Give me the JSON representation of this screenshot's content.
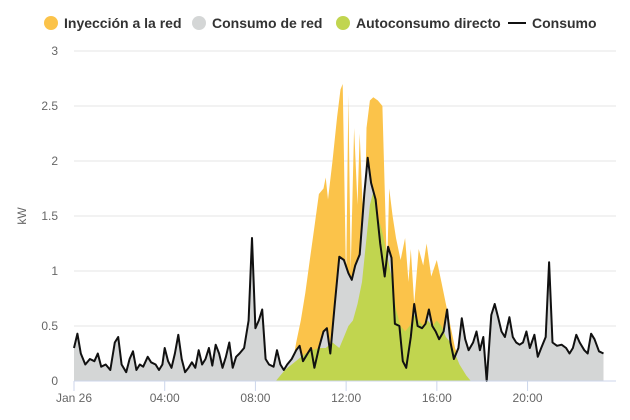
{
  "chart_data": {
    "type": "area",
    "title": "",
    "xlabel": "",
    "ylabel": "kW",
    "ylim": [
      0,
      3
    ],
    "yticks": [
      "0",
      "0.5",
      "1",
      "1.5",
      "2",
      "2.5",
      "3"
    ],
    "xticks": [
      {
        "label": "Jan 26",
        "hour": 0
      },
      {
        "label": "04:00",
        "hour": 4
      },
      {
        "label": "08:00",
        "hour": 8
      },
      {
        "label": "12:00",
        "hour": 12
      },
      {
        "label": "16:00",
        "hour": 16
      },
      {
        "label": "20:00",
        "hour": 20
      }
    ],
    "xlim_hours": [
      0,
      23.9
    ],
    "grid": "horizontal",
    "legend_position": "top",
    "series": [
      {
        "name": "Inyección a la red",
        "color": "#fbc34a",
        "kind": "area",
        "points": [
          [
            9.5,
            0
          ],
          [
            9.8,
            0.35
          ],
          [
            10.0,
            0.55
          ],
          [
            10.2,
            0.8
          ],
          [
            10.4,
            1.1
          ],
          [
            10.6,
            1.4
          ],
          [
            10.8,
            1.7
          ],
          [
            11.0,
            1.75
          ],
          [
            11.1,
            1.85
          ],
          [
            11.2,
            1.65
          ],
          [
            11.4,
            2.0
          ],
          [
            11.6,
            2.4
          ],
          [
            11.75,
            2.65
          ],
          [
            11.85,
            2.7
          ],
          [
            12.0,
            0.9
          ],
          [
            12.1,
            2.6
          ],
          [
            12.2,
            1.0
          ],
          [
            12.35,
            2.3
          ],
          [
            12.5,
            1.6
          ],
          [
            12.6,
            2.25
          ],
          [
            12.8,
            1.2
          ],
          [
            12.9,
            2.3
          ],
          [
            13.05,
            2.55
          ],
          [
            13.2,
            2.58
          ],
          [
            13.4,
            2.55
          ],
          [
            13.6,
            2.5
          ],
          [
            13.8,
            1.0
          ],
          [
            13.9,
            1.75
          ],
          [
            14.05,
            1.5
          ],
          [
            14.2,
            1.3
          ],
          [
            14.4,
            1.1
          ],
          [
            14.6,
            1.3
          ],
          [
            14.75,
            0.9
          ],
          [
            14.85,
            1.2
          ],
          [
            15.0,
            0.7
          ],
          [
            15.2,
            1.2
          ],
          [
            15.4,
            1.05
          ],
          [
            15.55,
            1.25
          ],
          [
            15.75,
            0.95
          ],
          [
            16.0,
            1.1
          ],
          [
            16.2,
            0.9
          ],
          [
            16.4,
            0.7
          ],
          [
            16.6,
            0.5
          ],
          [
            16.8,
            0.3
          ],
          [
            17.0,
            0.2
          ],
          [
            17.2,
            0.1
          ],
          [
            17.4,
            0
          ]
        ]
      },
      {
        "name": "Consumo de red",
        "color": "#d4d6d6",
        "kind": "area"
      },
      {
        "name": "Autoconsumo directo",
        "color": "#c1d54f",
        "kind": "area",
        "points": [
          [
            8.9,
            0
          ],
          [
            9.3,
            0.1
          ],
          [
            9.6,
            0.15
          ],
          [
            9.9,
            0.2
          ],
          [
            10.2,
            0.25
          ],
          [
            10.5,
            0.28
          ],
          [
            10.8,
            0.3
          ],
          [
            11.1,
            0.3
          ],
          [
            11.4,
            0.35
          ],
          [
            11.7,
            0.3
          ],
          [
            11.9,
            0.4
          ],
          [
            12.1,
            0.5
          ],
          [
            12.3,
            0.55
          ],
          [
            12.5,
            0.7
          ],
          [
            12.7,
            0.9
          ],
          [
            12.9,
            1.3
          ],
          [
            13.05,
            1.6
          ],
          [
            13.2,
            1.72
          ],
          [
            13.4,
            1.5
          ],
          [
            13.6,
            1.35
          ],
          [
            13.8,
            1.15
          ],
          [
            14.0,
            0.95
          ],
          [
            14.2,
            0.65
          ],
          [
            14.4,
            0.5
          ],
          [
            14.6,
            0.45
          ],
          [
            14.8,
            0.5
          ],
          [
            15.0,
            0.6
          ],
          [
            15.2,
            0.55
          ],
          [
            15.4,
            0.5
          ],
          [
            15.6,
            0.55
          ],
          [
            15.8,
            0.5
          ],
          [
            16.0,
            0.55
          ],
          [
            16.2,
            0.5
          ],
          [
            16.4,
            0.4
          ],
          [
            16.6,
            0.35
          ],
          [
            16.8,
            0.25
          ],
          [
            17.0,
            0.15
          ],
          [
            17.3,
            0.05
          ],
          [
            17.5,
            0
          ]
        ]
      },
      {
        "name": "Consumo",
        "color": "#111111",
        "kind": "line",
        "points": [
          [
            0.0,
            0.3
          ],
          [
            0.15,
            0.43
          ],
          [
            0.3,
            0.25
          ],
          [
            0.5,
            0.15
          ],
          [
            0.7,
            0.2
          ],
          [
            0.9,
            0.18
          ],
          [
            1.05,
            0.25
          ],
          [
            1.2,
            0.13
          ],
          [
            1.4,
            0.15
          ],
          [
            1.6,
            0.1
          ],
          [
            1.8,
            0.35
          ],
          [
            1.95,
            0.4
          ],
          [
            2.1,
            0.15
          ],
          [
            2.3,
            0.08
          ],
          [
            2.45,
            0.2
          ],
          [
            2.6,
            0.27
          ],
          [
            2.75,
            0.1
          ],
          [
            2.9,
            0.15
          ],
          [
            3.05,
            0.13
          ],
          [
            3.25,
            0.22
          ],
          [
            3.4,
            0.17
          ],
          [
            3.6,
            0.15
          ],
          [
            3.75,
            0.1
          ],
          [
            3.9,
            0.15
          ],
          [
            4.0,
            0.3
          ],
          [
            4.15,
            0.18
          ],
          [
            4.3,
            0.12
          ],
          [
            4.45,
            0.25
          ],
          [
            4.6,
            0.42
          ],
          [
            4.75,
            0.2
          ],
          [
            4.9,
            0.08
          ],
          [
            5.05,
            0.12
          ],
          [
            5.2,
            0.17
          ],
          [
            5.35,
            0.12
          ],
          [
            5.5,
            0.28
          ],
          [
            5.65,
            0.15
          ],
          [
            5.8,
            0.2
          ],
          [
            5.95,
            0.3
          ],
          [
            6.1,
            0.14
          ],
          [
            6.25,
            0.33
          ],
          [
            6.4,
            0.25
          ],
          [
            6.55,
            0.12
          ],
          [
            6.7,
            0.22
          ],
          [
            6.85,
            0.35
          ],
          [
            7.0,
            0.12
          ],
          [
            7.15,
            0.22
          ],
          [
            7.3,
            0.25
          ],
          [
            7.5,
            0.3
          ],
          [
            7.7,
            0.55
          ],
          [
            7.85,
            1.3
          ],
          [
            8.0,
            0.48
          ],
          [
            8.15,
            0.55
          ],
          [
            8.3,
            0.65
          ],
          [
            8.45,
            0.2
          ],
          [
            8.6,
            0.15
          ],
          [
            8.8,
            0.13
          ],
          [
            8.95,
            0.28
          ],
          [
            9.1,
            0.15
          ],
          [
            9.25,
            0.1
          ],
          [
            9.4,
            0.15
          ],
          [
            9.6,
            0.2
          ],
          [
            9.8,
            0.28
          ],
          [
            9.95,
            0.32
          ],
          [
            10.1,
            0.18
          ],
          [
            10.3,
            0.25
          ],
          [
            10.45,
            0.3
          ],
          [
            10.6,
            0.12
          ],
          [
            10.8,
            0.3
          ],
          [
            11.0,
            0.45
          ],
          [
            11.15,
            0.48
          ],
          [
            11.3,
            0.25
          ],
          [
            11.5,
            0.7
          ],
          [
            11.7,
            1.13
          ],
          [
            11.9,
            1.1
          ],
          [
            12.1,
            0.98
          ],
          [
            12.25,
            0.92
          ],
          [
            12.4,
            1.05
          ],
          [
            12.6,
            1.15
          ],
          [
            12.8,
            1.7
          ],
          [
            12.95,
            2.03
          ],
          [
            13.1,
            1.8
          ],
          [
            13.3,
            1.65
          ],
          [
            13.5,
            1.25
          ],
          [
            13.7,
            0.95
          ],
          [
            13.85,
            1.22
          ],
          [
            14.0,
            1.12
          ],
          [
            14.15,
            0.52
          ],
          [
            14.35,
            0.5
          ],
          [
            14.5,
            0.18
          ],
          [
            14.65,
            0.12
          ],
          [
            14.85,
            0.4
          ],
          [
            15.0,
            0.7
          ],
          [
            15.15,
            0.5
          ],
          [
            15.35,
            0.48
          ],
          [
            15.5,
            0.52
          ],
          [
            15.65,
            0.65
          ],
          [
            15.8,
            0.5
          ],
          [
            15.95,
            0.45
          ],
          [
            16.1,
            0.38
          ],
          [
            16.3,
            0.45
          ],
          [
            16.45,
            0.65
          ],
          [
            16.6,
            0.35
          ],
          [
            16.75,
            0.2
          ],
          [
            16.95,
            0.3
          ],
          [
            17.1,
            0.57
          ],
          [
            17.25,
            0.38
          ],
          [
            17.4,
            0.28
          ],
          [
            17.6,
            0.35
          ],
          [
            17.75,
            0.45
          ],
          [
            17.9,
            0.28
          ],
          [
            18.05,
            0.4
          ],
          [
            18.2,
            0.0
          ],
          [
            18.4,
            0.6
          ],
          [
            18.55,
            0.7
          ],
          [
            18.7,
            0.58
          ],
          [
            18.85,
            0.45
          ],
          [
            19.0,
            0.4
          ],
          [
            19.2,
            0.58
          ],
          [
            19.35,
            0.4
          ],
          [
            19.5,
            0.35
          ],
          [
            19.65,
            0.33
          ],
          [
            19.8,
            0.35
          ],
          [
            19.95,
            0.45
          ],
          [
            20.1,
            0.3
          ],
          [
            20.3,
            0.42
          ],
          [
            20.45,
            0.22
          ],
          [
            20.6,
            0.3
          ],
          [
            20.8,
            0.4
          ],
          [
            20.95,
            1.08
          ],
          [
            21.1,
            0.35
          ],
          [
            21.3,
            0.32
          ],
          [
            21.5,
            0.33
          ],
          [
            21.7,
            0.3
          ],
          [
            21.85,
            0.25
          ],
          [
            22.0,
            0.3
          ],
          [
            22.15,
            0.42
          ],
          [
            22.3,
            0.35
          ],
          [
            22.5,
            0.28
          ],
          [
            22.65,
            0.25
          ],
          [
            22.8,
            0.43
          ],
          [
            22.95,
            0.38
          ],
          [
            23.15,
            0.27
          ],
          [
            23.35,
            0.25
          ]
        ]
      }
    ]
  }
}
